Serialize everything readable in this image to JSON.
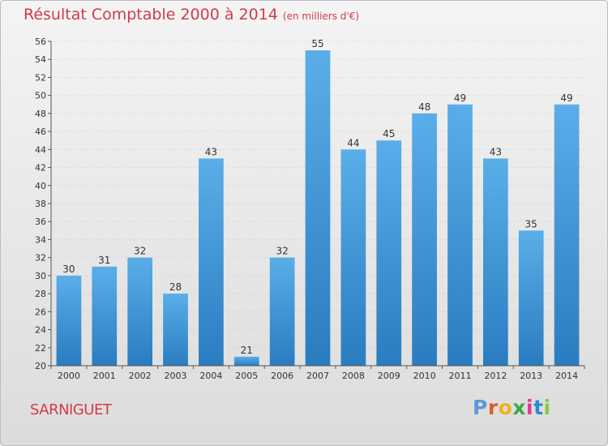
{
  "chart_data": {
    "type": "bar",
    "title": "Résultat Comptable 2000 à 2014",
    "subtitle": "(en milliers d'€)",
    "categories": [
      "2000",
      "2001",
      "2002",
      "2003",
      "2004",
      "2005",
      "2006",
      "2007",
      "2008",
      "2009",
      "2010",
      "2011",
      "2012",
      "2013",
      "2014"
    ],
    "values": [
      30,
      31,
      32,
      28,
      43,
      21,
      32,
      55,
      44,
      45,
      48,
      49,
      43,
      35,
      49
    ],
    "ylim": [
      20,
      56
    ],
    "ytick_step": 2,
    "grid": true,
    "bar_color_light": "#5aaee8",
    "bar_color_dark": "#2a7cc0"
  },
  "place_name": "SARNIGUET",
  "logo": {
    "text": "Proxiti",
    "colors": [
      "#5b9bd5",
      "#e05a2b",
      "#f2b01e",
      "#3aa84a",
      "#e0388c",
      "#2b8ad6",
      "#8cc63f"
    ]
  }
}
